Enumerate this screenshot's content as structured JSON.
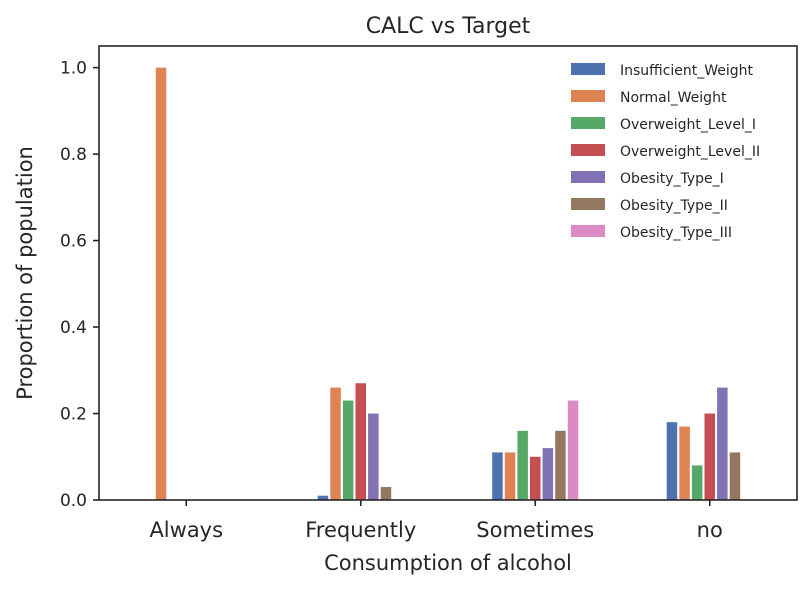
{
  "chart_data": {
    "type": "bar",
    "title": "CALC vs Target",
    "xlabel": "Consumption of alcohol",
    "ylabel": "Proportion of population",
    "categories": [
      "Always",
      "Frequently",
      "Sometimes",
      "no"
    ],
    "ylim": [
      0,
      1.05
    ],
    "yticks": [
      "0.0",
      "0.2",
      "0.4",
      "0.6",
      "0.8",
      "1.0"
    ],
    "grid": false,
    "legend_position": "top-right",
    "series": [
      {
        "name": "Insufficient_Weight",
        "color": "#4c72b0",
        "values": [
          0.0,
          0.01,
          0.11,
          0.18
        ]
      },
      {
        "name": "Normal_Weight",
        "color": "#dd8452",
        "values": [
          1.0,
          0.26,
          0.11,
          0.17
        ]
      },
      {
        "name": "Overweight_Level_I",
        "color": "#55a868",
        "values": [
          0.0,
          0.23,
          0.16,
          0.08
        ]
      },
      {
        "name": "Overweight_Level_II",
        "color": "#c44e52",
        "values": [
          0.0,
          0.27,
          0.1,
          0.2
        ]
      },
      {
        "name": "Obesity_Type_I",
        "color": "#8172b3",
        "values": [
          0.0,
          0.2,
          0.12,
          0.26
        ]
      },
      {
        "name": "Obesity_Type_II",
        "color": "#937860",
        "values": [
          0.0,
          0.03,
          0.16,
          0.11
        ]
      },
      {
        "name": "Obesity_Type_III",
        "color": "#da8bc3",
        "values": [
          0.0,
          0.0,
          0.23,
          0.0
        ]
      }
    ]
  }
}
